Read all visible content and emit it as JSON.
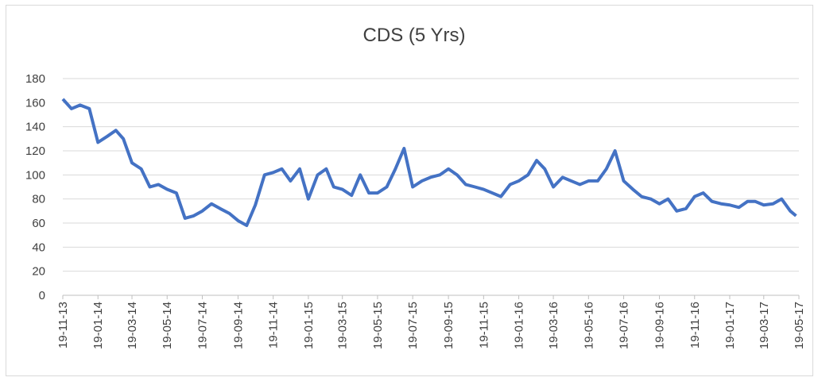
{
  "chart_data": {
    "type": "line",
    "title": "CDS (5 Yrs)",
    "x": [
      "19-11-13",
      "04-12-13",
      "19-12-13",
      "04-01-14",
      "19-01-14",
      "04-02-14",
      "19-02-14",
      "04-03-14",
      "19-03-14",
      "04-04-14",
      "19-04-14",
      "04-05-14",
      "19-05-14",
      "04-06-14",
      "19-06-14",
      "04-07-14",
      "19-07-14",
      "04-08-14",
      "19-08-14",
      "04-09-14",
      "19-09-14",
      "04-10-14",
      "19-10-14",
      "04-11-14",
      "19-11-14",
      "04-12-14",
      "19-12-14",
      "04-01-15",
      "19-01-15",
      "04-02-15",
      "19-02-15",
      "04-03-15",
      "19-03-15",
      "04-04-15",
      "19-04-15",
      "04-05-15",
      "19-05-15",
      "04-06-15",
      "19-06-15",
      "04-07-15",
      "19-07-15",
      "04-08-15",
      "19-08-15",
      "04-09-15",
      "19-09-15",
      "04-10-15",
      "19-10-15",
      "04-11-15",
      "19-11-15",
      "04-12-15",
      "19-12-15",
      "04-01-16",
      "19-01-16",
      "04-02-16",
      "19-02-16",
      "04-03-16",
      "19-03-16",
      "04-04-16",
      "19-04-16",
      "04-05-16",
      "19-05-16",
      "04-06-16",
      "19-06-16",
      "04-07-16",
      "19-07-16",
      "04-08-16",
      "19-08-16",
      "04-09-16",
      "19-09-16",
      "04-10-16",
      "19-10-16",
      "04-11-16",
      "19-11-16",
      "04-12-16",
      "19-12-16",
      "04-01-17",
      "19-01-17",
      "04-02-17",
      "19-02-17",
      "04-03-17",
      "19-03-17",
      "04-04-17",
      "19-04-17",
      "04-05-17",
      "14-05-17"
    ],
    "series": [
      {
        "name": "CDS (5 Yrs)",
        "color": "#4472c4",
        "values": [
          163,
          155,
          158,
          155,
          127,
          132,
          137,
          130,
          110,
          105,
          90,
          92,
          88,
          85,
          64,
          66,
          70,
          76,
          72,
          68,
          62,
          58,
          75,
          100,
          102,
          105,
          95,
          105,
          80,
          100,
          105,
          90,
          88,
          83,
          100,
          85,
          85,
          90,
          105,
          122,
          90,
          95,
          98,
          100,
          105,
          100,
          92,
          90,
          88,
          85,
          82,
          92,
          95,
          100,
          112,
          105,
          90,
          98,
          95,
          92,
          95,
          95,
          105,
          120,
          95,
          88,
          82,
          80,
          76,
          80,
          70,
          72,
          82,
          85,
          78,
          76,
          75,
          73,
          78,
          78,
          75,
          76,
          80,
          70,
          66
        ]
      }
    ],
    "xlim": [
      "19-11-13",
      "19-05-17"
    ],
    "xticks": [
      "19-11-13",
      "19-01-14",
      "19-03-14",
      "19-05-14",
      "19-07-14",
      "19-09-14",
      "19-11-14",
      "19-01-15",
      "19-03-15",
      "19-05-15",
      "19-07-15",
      "19-09-15",
      "19-11-15",
      "19-01-16",
      "19-03-16",
      "19-05-16",
      "19-07-16",
      "19-09-16",
      "19-11-16",
      "19-01-17",
      "19-03-17",
      "19-05-17"
    ],
    "ylim": [
      0,
      180
    ],
    "yticks": [
      0,
      20,
      40,
      60,
      80,
      100,
      120,
      140,
      160,
      180
    ],
    "grid": true
  }
}
